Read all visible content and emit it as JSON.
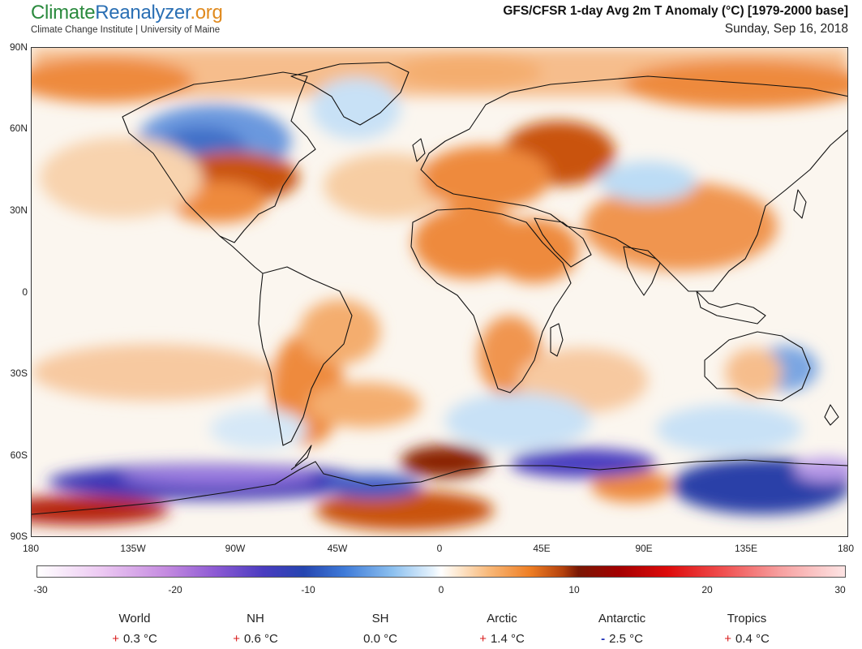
{
  "header": {
    "brand_part1": "Climate",
    "brand_part2": "Reanalyzer",
    "brand_part3": ".org",
    "subtitle": "Climate Change Institute | University of Maine",
    "title": "GFS/CFSR 1-day Avg 2m T Anomaly (°C) [1979-2000 base]",
    "date": "Sunday, Sep 16, 2018"
  },
  "map": {
    "lat_labels": [
      "90N",
      "60N",
      "30N",
      "0",
      "30S",
      "60S",
      "90S"
    ],
    "lon_labels": [
      "180",
      "135W",
      "90W",
      "45W",
      "0",
      "45E",
      "90E",
      "135E",
      "180"
    ],
    "colors": {
      "ocean_neutral": "#fbf7f1",
      "warm_light": "#f6c79a",
      "warm": "#ee8a3c",
      "warm_strong": "#b8420d",
      "cold_light": "#c8e1f6",
      "cold": "#5f8fdc",
      "cold_strong": "#3a35b5",
      "cold_extreme": "#9a7ae0"
    }
  },
  "colorbar": {
    "labels": [
      "-30",
      "-20",
      "-10",
      "0",
      "10",
      "20",
      "30"
    ]
  },
  "stats": [
    {
      "name": "World",
      "sign": "+",
      "value": "0.3 °C"
    },
    {
      "name": "NH",
      "sign": "+",
      "value": "0.6 °C"
    },
    {
      "name": "SH",
      "sign": "",
      "value": "0.0 °C"
    },
    {
      "name": "Arctic",
      "sign": "+",
      "value": "1.4 °C"
    },
    {
      "name": "Antarctic",
      "sign": "-",
      "value": "2.5 °C"
    },
    {
      "name": "Tropics",
      "sign": "+",
      "value": "0.4 °C"
    }
  ]
}
